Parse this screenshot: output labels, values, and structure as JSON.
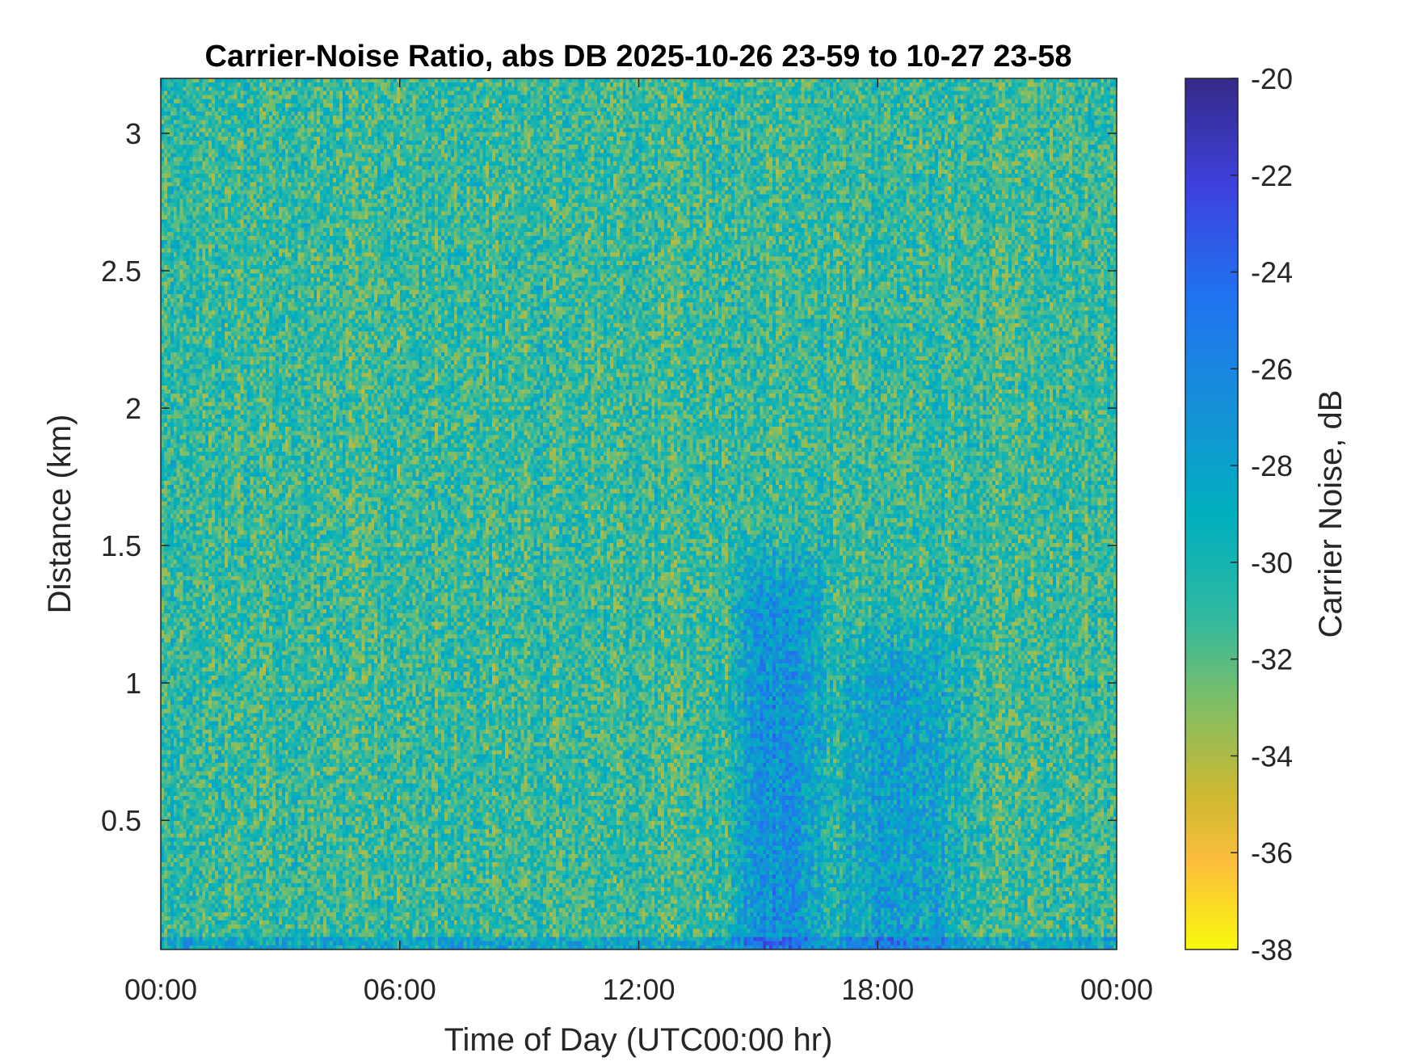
{
  "chart_data": {
    "type": "heatmap",
    "title": "Carrier-Noise Ratio, abs DB 2025-10-26 23-59 to 10-27 23-58",
    "xlabel": "Time of Day (UTC00:00 hr)",
    "ylabel": "Distance (km)",
    "colorbar_label": "Carrier Noise, dB",
    "x_range_hours": [
      0,
      24
    ],
    "x_ticks": [
      {
        "value": 0,
        "label": "00:00"
      },
      {
        "value": 6,
        "label": "06:00"
      },
      {
        "value": 12,
        "label": "12:00"
      },
      {
        "value": 18,
        "label": "18:00"
      },
      {
        "value": 24,
        "label": "00:00"
      }
    ],
    "y_range_km": [
      0.03,
      3.2
    ],
    "y_ticks": [
      {
        "value": 0.5,
        "label": "0.5"
      },
      {
        "value": 1,
        "label": "1"
      },
      {
        "value": 1.5,
        "label": "1.5"
      },
      {
        "value": 2,
        "label": "2"
      },
      {
        "value": 2.5,
        "label": "2.5"
      },
      {
        "value": 3,
        "label": "3"
      }
    ],
    "color_range_db": [
      -38,
      -20
    ],
    "colorbar_ticks": [
      {
        "value": -20,
        "label": "-20"
      },
      {
        "value": -22,
        "label": "-22"
      },
      {
        "value": -24,
        "label": "-24"
      },
      {
        "value": -26,
        "label": "-26"
      },
      {
        "value": -28,
        "label": "-28"
      },
      {
        "value": -30,
        "label": "-30"
      },
      {
        "value": -32,
        "label": "-32"
      },
      {
        "value": -34,
        "label": "-34"
      },
      {
        "value": -36,
        "label": "-36"
      },
      {
        "value": -38,
        "label": "-38"
      }
    ],
    "colormap": "parula",
    "color_axis_reversed": true,
    "grid": false,
    "background_level_db": -31,
    "features": [
      {
        "time_start_h": 14.5,
        "time_end_h": 16.5,
        "dist_max_km": 1.6,
        "level_db": -26.5
      },
      {
        "time_start_h": 17.0,
        "time_end_h": 20.0,
        "dist_max_km": 1.3,
        "level_db": -28
      }
    ]
  }
}
